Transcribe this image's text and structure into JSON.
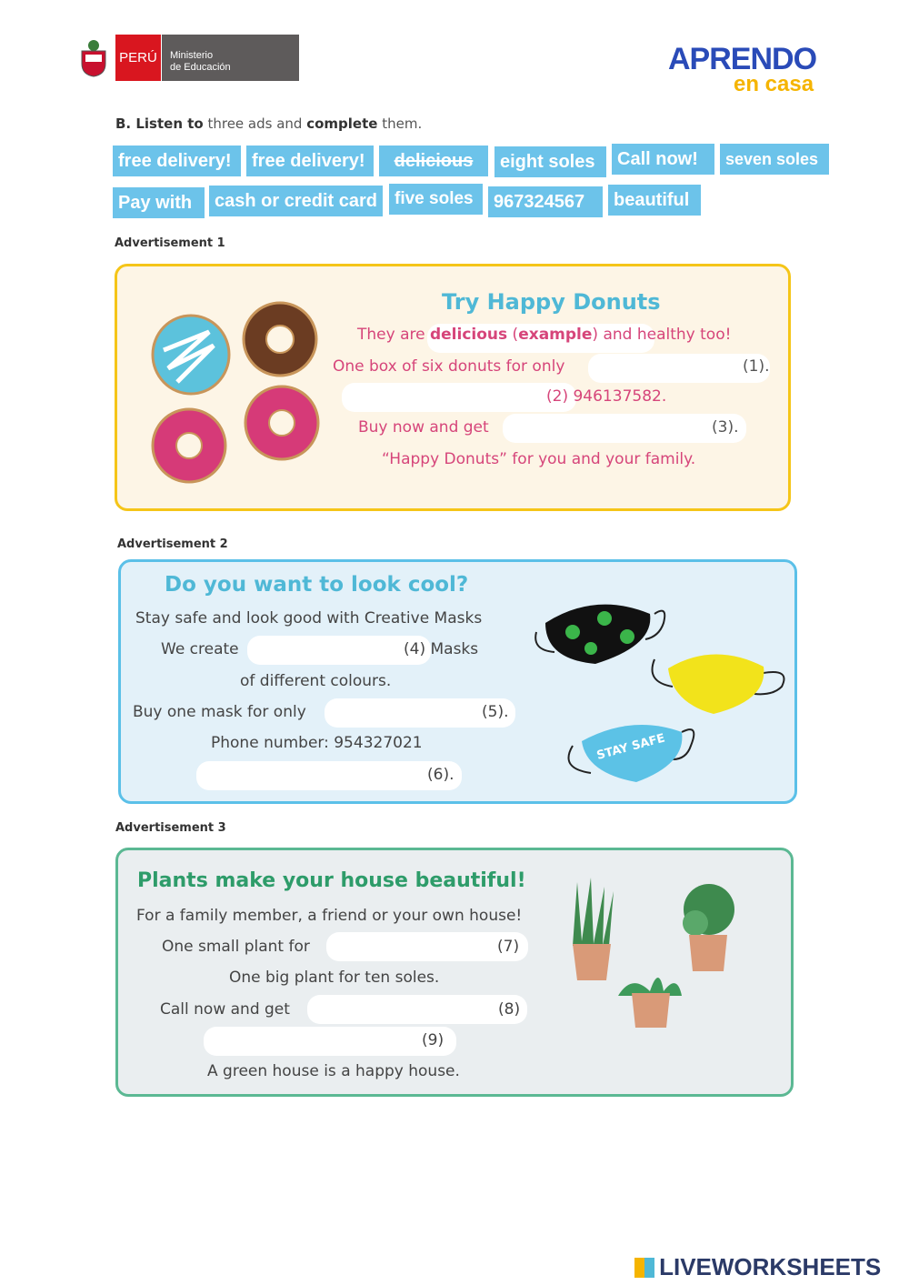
{
  "header": {
    "country": "PERÚ",
    "ministry_line1": "Ministerio",
    "ministry_line2": "de Educación",
    "brand_line1": "APRENDO",
    "brand_line2": "en casa"
  },
  "instruction": {
    "prefix": "B. Listen to",
    "middle": " three ads and ",
    "bold2": "complete",
    "suffix": " them."
  },
  "word_bank": [
    {
      "label": "free delivery!",
      "used": false
    },
    {
      "label": "free delivery!",
      "used": false
    },
    {
      "label": "delicious",
      "used": true
    },
    {
      "label": "eight soles",
      "used": false
    },
    {
      "label": "Call now!",
      "used": false
    },
    {
      "label": "seven soles",
      "used": false
    },
    {
      "label": "Pay with",
      "used": false
    },
    {
      "label": "cash or credit card",
      "used": false
    },
    {
      "label": "five soles",
      "used": false
    },
    {
      "label": "967324567",
      "used": false
    },
    {
      "label": "beautiful",
      "used": false
    }
  ],
  "ad1": {
    "label": "Advertisement 1",
    "title": "Try Happy Donuts",
    "line1_a": "They are ",
    "line1_bold1": "delicious",
    "line1_b": " (",
    "line1_bold2": "example",
    "line1_c": ") and healthy too!",
    "line2": "One box of six donuts for only",
    "n1": "(1).",
    "n2": "(2) 946137582.",
    "line4": "Buy now and get",
    "n3": "(3).",
    "line5": "“Happy Donuts” for you and your family."
  },
  "ad2": {
    "label": "Advertisement 2",
    "title": "Do you want to look cool?",
    "line1": "Stay safe and look good with Creative Masks",
    "line2": "We create",
    "n4": "(4) Masks",
    "line3": "of different colours.",
    "line4": "Buy one mask for only",
    "n5": "(5).",
    "line5": "Phone number: 954327021",
    "n6": "(6).",
    "mask_text": "STAY SAFE"
  },
  "ad3": {
    "label": "Advertisement 3",
    "title": "Plants make your house beautiful!",
    "line1": "For a family member, a friend or your own house!",
    "line2": "One small plant for",
    "n7": "(7)",
    "line3": "One big plant for ten soles.",
    "line4": "Call now and get",
    "n8": "(8)",
    "n9": "(9)",
    "line6": "A green house is a happy house."
  },
  "footer": {
    "brand": "LIVEWORKSHEETS"
  },
  "colors": {
    "chip": "#6cc3ea",
    "ad1_border": "#f5c518",
    "ad2_border": "#5bc0e8",
    "ad3_border": "#5bb893",
    "pink": "#d6457a",
    "teal": "#4fb8d6",
    "green": "#2e9c6a"
  }
}
